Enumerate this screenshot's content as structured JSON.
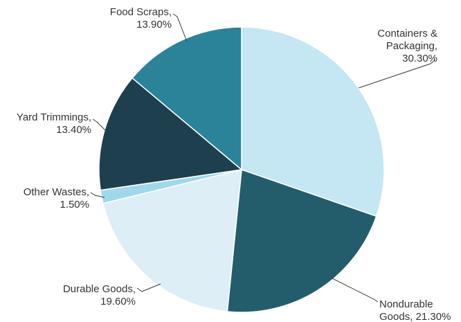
{
  "chart_data": {
    "type": "pie",
    "title": "",
    "slices": [
      {
        "label": "Containers & Packaging",
        "label_lines": [
          "Containers &",
          "Packaging,",
          "30.30%"
        ],
        "value": 30.3,
        "color": "#c5e6f3"
      },
      {
        "label": "Nondurable Goods",
        "label_lines": [
          "Nondurable",
          "Goods, 21.30%"
        ],
        "value": 21.3,
        "color": "#235d6b"
      },
      {
        "label": "Durable Goods",
        "label_lines": [
          "Durable Goods,",
          "19.60%"
        ],
        "value": 19.6,
        "color": "#ddeef6"
      },
      {
        "label": "Other Wastes",
        "label_lines": [
          "Other Wastes,",
          "1.50%"
        ],
        "value": 1.5,
        "color": "#9fd8ea"
      },
      {
        "label": "Yard Trimmings",
        "label_lines": [
          "Yard Trimmings,",
          "13.40%"
        ],
        "value": 13.4,
        "color": "#1e3f4d"
      },
      {
        "label": "Food Scraps",
        "label_lines": [
          "Food Scraps,",
          "13.90%"
        ],
        "value": 13.9,
        "color": "#2a8399"
      }
    ]
  }
}
